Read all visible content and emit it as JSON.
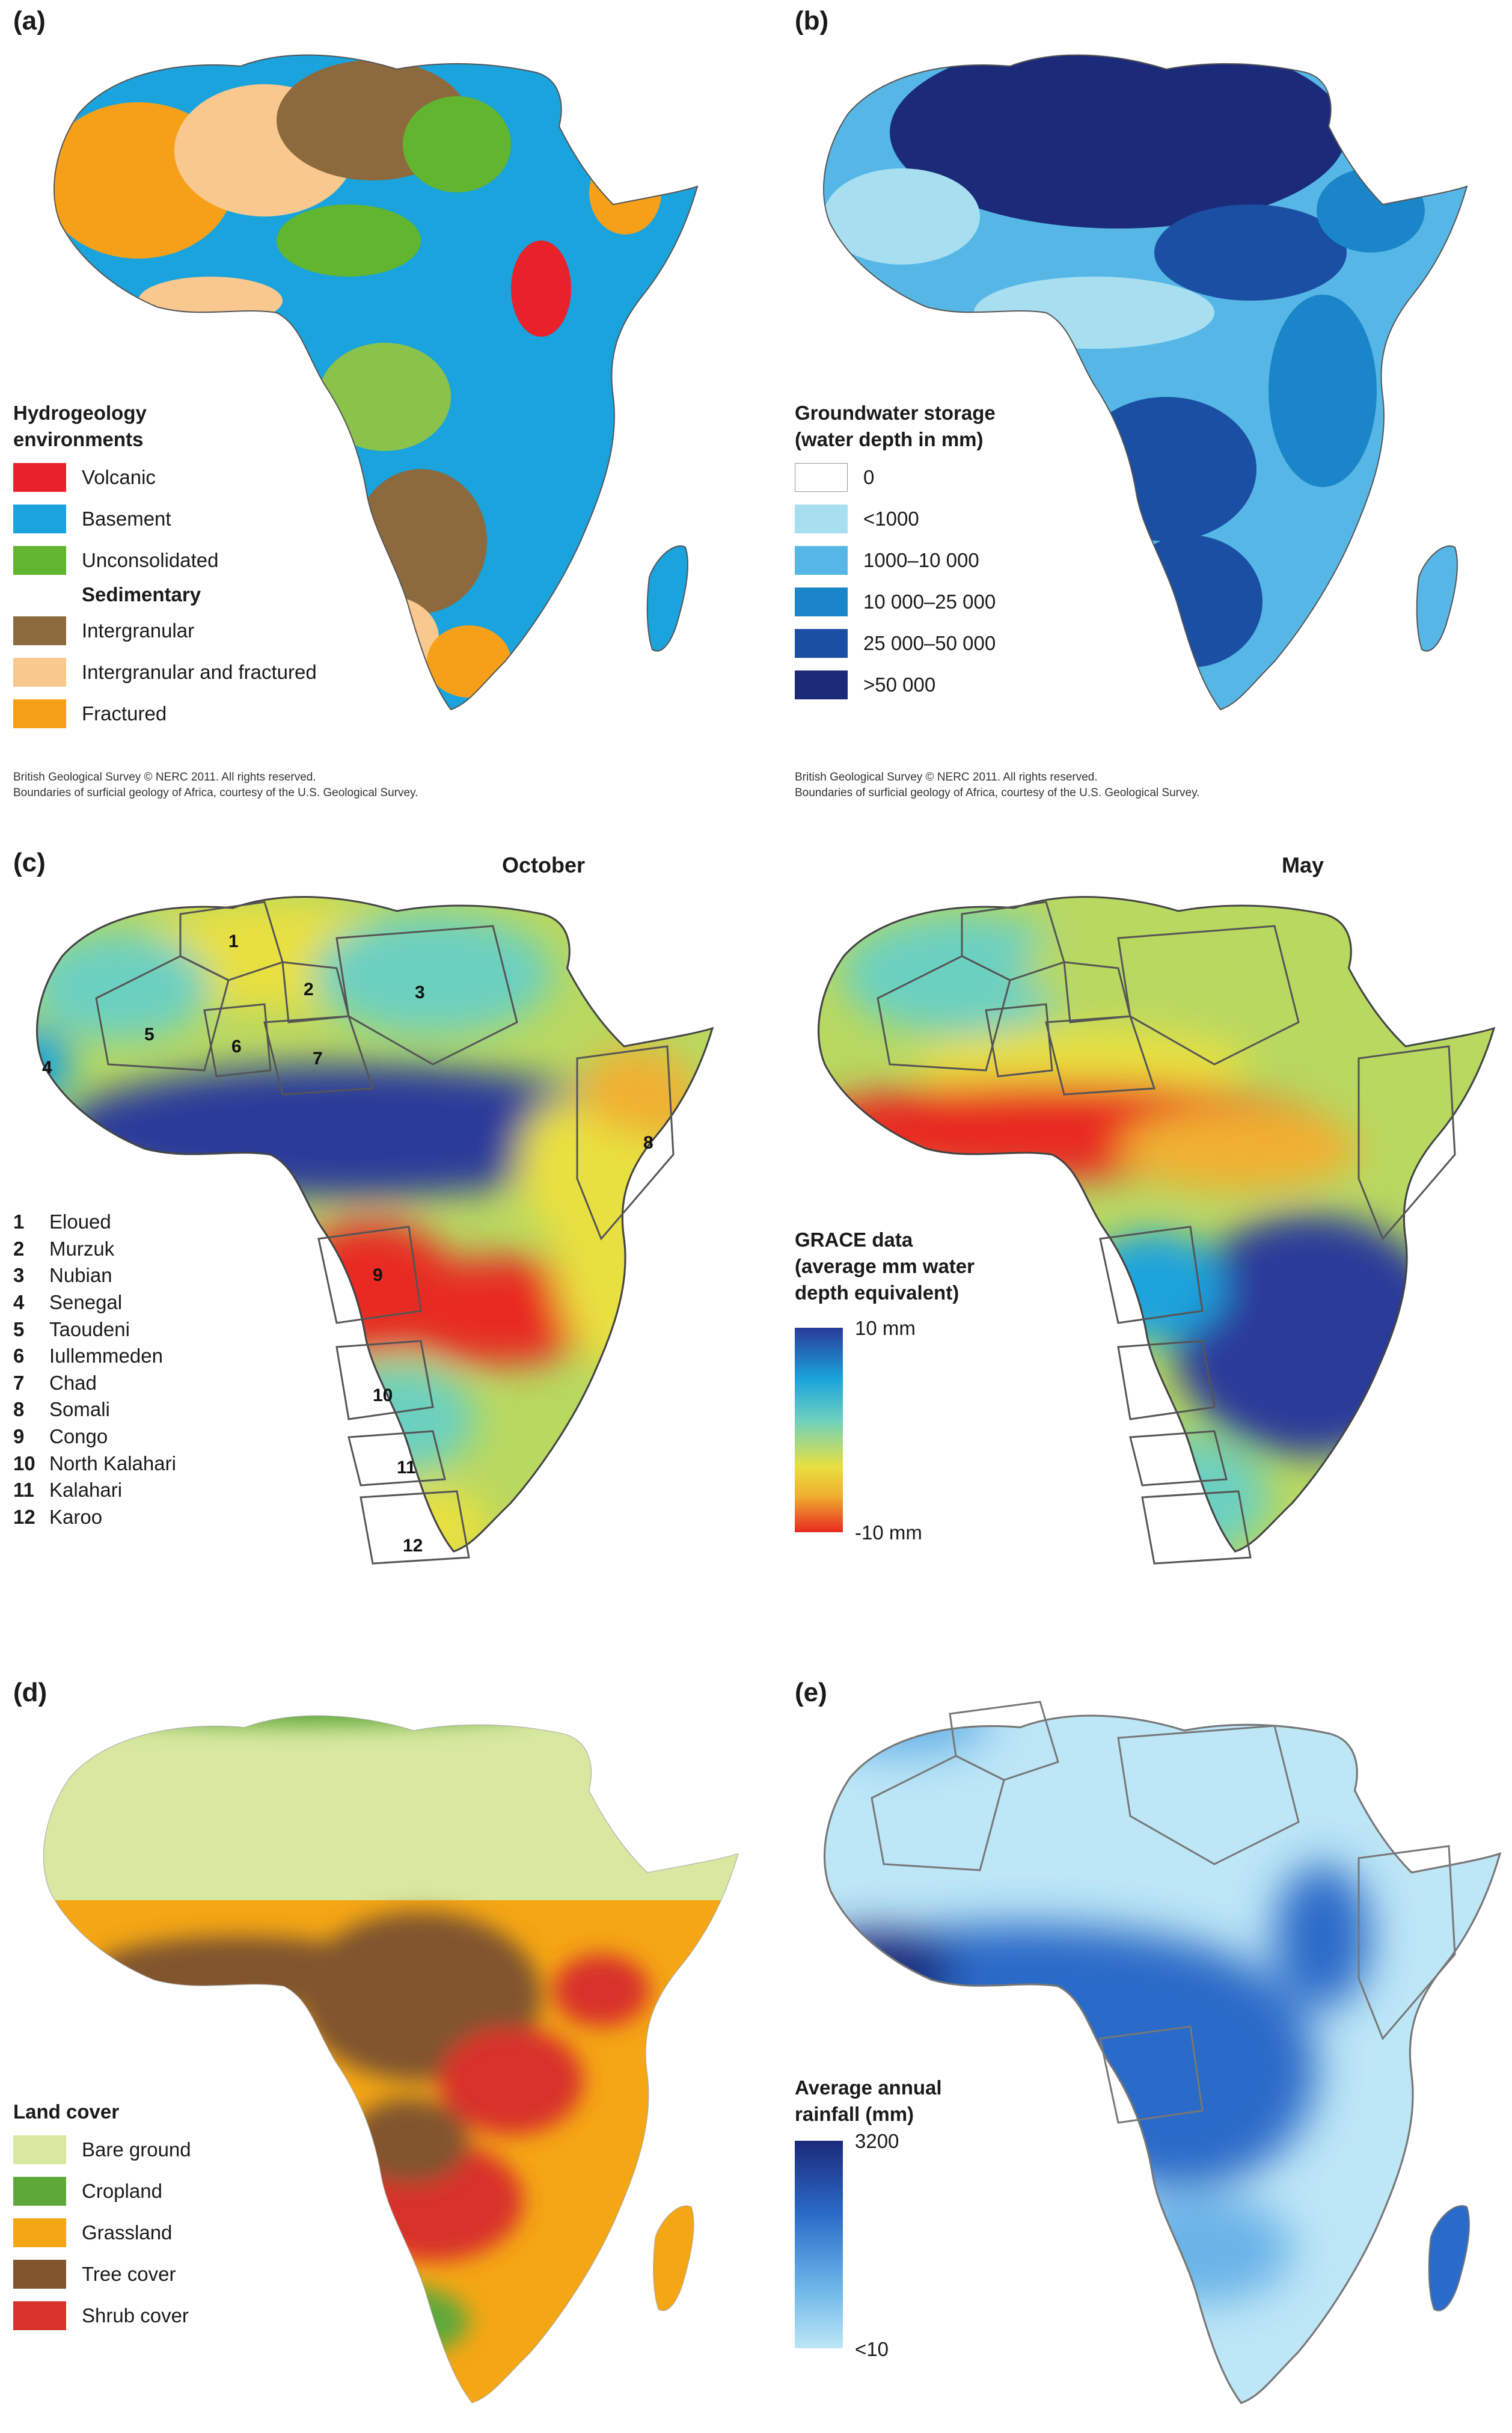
{
  "panels": {
    "a": {
      "label": "(a)",
      "legend_title_line1": "Hydrogeology",
      "legend_title_line2": "environments",
      "items": [
        {
          "label": "Volcanic",
          "color": "#e8212a"
        },
        {
          "label": "Basement",
          "color": "#1aa3dc"
        },
        {
          "label": "Unconsolidated",
          "color": "#62b52e"
        }
      ],
      "subheading": "Sedimentary",
      "sub_items": [
        {
          "label": "Intergranular",
          "color": "#8c6a3e"
        },
        {
          "label": "Intergranular and fractured",
          "color": "#f9c88e"
        },
        {
          "label": "Fractured",
          "color": "#f6a01a"
        }
      ],
      "credit_line1": "British Geological Survey © NERC 2011.  All rights reserved.",
      "credit_line2": "Boundaries of surficial geology of Africa, courtesy of the U.S. Geological Survey."
    },
    "b": {
      "label": "(b)",
      "legend_title_line1": "Groundwater storage",
      "legend_title_line2": "(water depth in mm)",
      "items": [
        {
          "label": "0",
          "color": "#ffffff"
        },
        {
          "label": "<1000",
          "color": "#a8dff0"
        },
        {
          "label": "1000–10 000",
          "color": "#56b7e6"
        },
        {
          "label": "10 000–25 000",
          "color": "#1a85c8"
        },
        {
          "label": "25 000–50 000",
          "color": "#1a4fa3"
        },
        {
          "label": ">50 000",
          "color": "#1c2a7a"
        }
      ],
      "credit_line1": "British Geological Survey © NERC 2011.  All rights reserved.",
      "credit_line2": "Boundaries of surficial geology of Africa, courtesy of the U.S. Geological Survey."
    },
    "c": {
      "label": "(c)",
      "month_left": "October",
      "month_right": "May",
      "aquifers": [
        {
          "num": "1",
          "name": "Eloued"
        },
        {
          "num": "2",
          "name": "Murzuk"
        },
        {
          "num": "3",
          "name": "Nubian"
        },
        {
          "num": "4",
          "name": "Senegal"
        },
        {
          "num": "5",
          "name": "Taoudeni"
        },
        {
          "num": "6",
          "name": "Iullemmeden"
        },
        {
          "num": "7",
          "name": "Chad"
        },
        {
          "num": "8",
          "name": "Somali"
        },
        {
          "num": "9",
          "name": "Congo"
        },
        {
          "num": "10",
          "name": "North Kalahari"
        },
        {
          "num": "11",
          "name": "Kalahari"
        },
        {
          "num": "12",
          "name": "Karoo"
        }
      ],
      "legend_title_line1": "GRACE data",
      "legend_title_line2": "(average mm water",
      "legend_title_line3": "depth equivalent)",
      "scale_max": "10 mm",
      "scale_min": "-10 mm",
      "gradient_colors": [
        "#2a3a9a",
        "#1aa3dc",
        "#6cd0c0",
        "#e8e040",
        "#f0b030",
        "#e82a20"
      ]
    },
    "d": {
      "label": "(d)",
      "legend_title": "Land cover",
      "items": [
        {
          "label": "Bare ground",
          "color": "#d8e8a0"
        },
        {
          "label": "Cropland",
          "color": "#5ea83a"
        },
        {
          "label": "Grassland",
          "color": "#f4a614"
        },
        {
          "label": "Tree cover",
          "color": "#80552e"
        },
        {
          "label": "Shrub cover",
          "color": "#d8322a"
        }
      ]
    },
    "e": {
      "label": "(e)",
      "legend_title_line1": "Average annual",
      "legend_title_line2": "rainfall (mm)",
      "scale_max": "3200",
      "scale_min": "<10",
      "gradient_colors": [
        "#1c2a7a",
        "#2a6ac8",
        "#6ab4e8",
        "#bde6f6"
      ]
    }
  }
}
